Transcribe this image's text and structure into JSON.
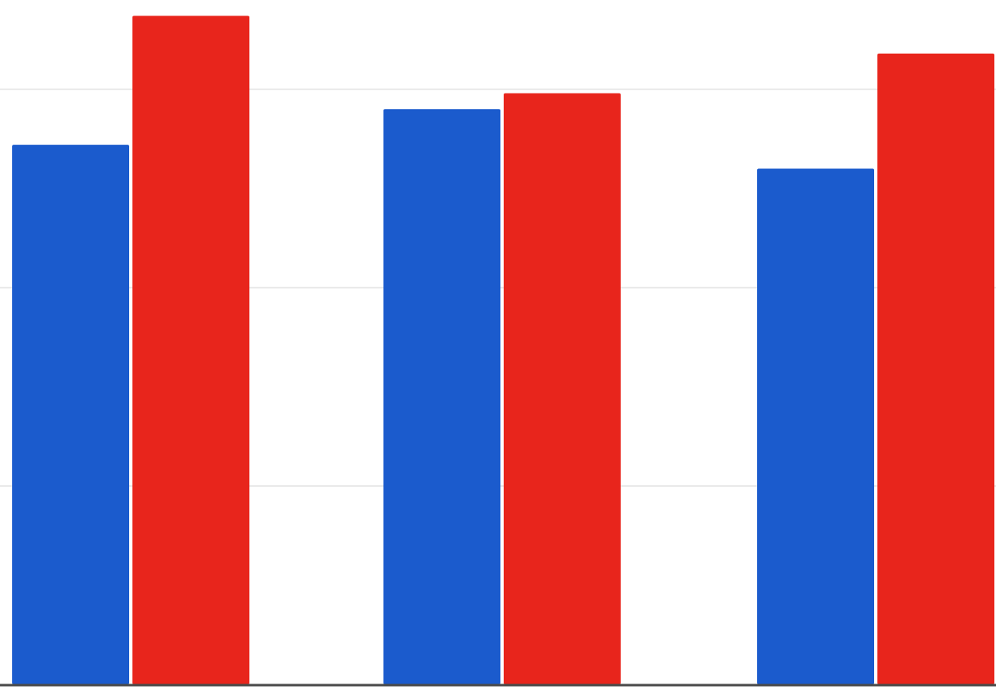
{
  "chart_data": {
    "type": "bar",
    "title": "",
    "xlabel": "",
    "ylabel": "",
    "categories": [
      "",
      "",
      ""
    ],
    "ylim": [
      0,
      3.45
    ],
    "grid": true,
    "gridlines": [
      1,
      2,
      3
    ],
    "legend": "none",
    "series": [
      {
        "color": "#1b5bcd",
        "values": [
          2.72,
          2.9,
          2.6
        ]
      },
      {
        "color": "#e8251c",
        "values": [
          3.37,
          2.98,
          3.18
        ]
      }
    ]
  }
}
